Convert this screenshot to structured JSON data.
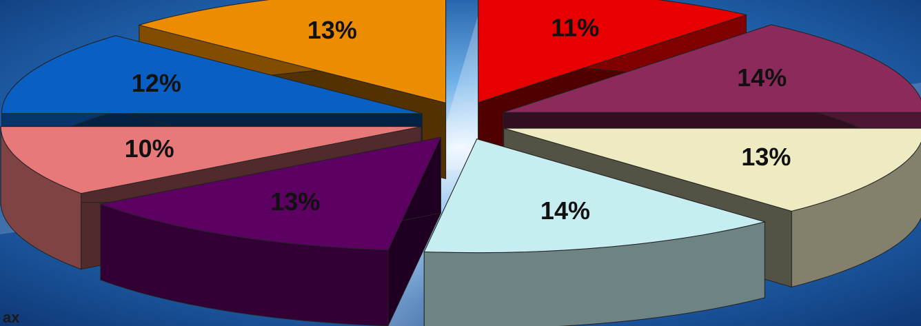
{
  "chart_data": {
    "type": "pie3d",
    "values": [
      11,
      14,
      13,
      14,
      13,
      10,
      12,
      13
    ],
    "value_labels": [
      "11%",
      "14%",
      "13%",
      "14%",
      "13%",
      "10%",
      "12%",
      "13%"
    ],
    "colors": [
      "#e80000",
      "#8c2a5c",
      "#eeebc2",
      "#c6eef0",
      "#5c0062",
      "#e8797a",
      "#0a60c2",
      "#ec8c00"
    ],
    "note": "ах"
  }
}
